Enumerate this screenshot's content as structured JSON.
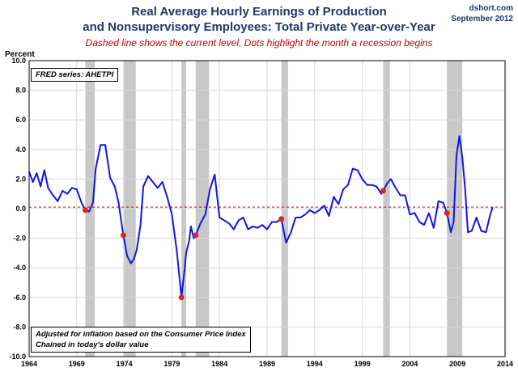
{
  "header": {
    "title_line1": "Real Average Hourly Earnings of Production",
    "title_line2": "and Nonsupervisory Employees: Total Private Year-over-Year",
    "subtitle": "Dashed line shows the current level, Dots highlight the month a recession begins",
    "source": "dshort.com",
    "date": "September 2012"
  },
  "colors": {
    "line": "#1414e6",
    "recession": "#c8c8c8",
    "dot": "#d42a1a",
    "dashed": "#cc0000"
  },
  "chart_data": {
    "type": "line",
    "ylabel": "Percent",
    "ylim": [
      -10,
      10
    ],
    "xlim": [
      1964,
      2014
    ],
    "y_ticks": [
      -10,
      -8,
      -6,
      -4,
      -2,
      0,
      2,
      4,
      6,
      8,
      10
    ],
    "y_tick_labels": [
      "-10.0",
      "-8.0",
      "-6.0",
      "-4.0",
      "-2.0",
      "0.0",
      "2.0",
      "4.0",
      "6.0",
      "8.0",
      "10.0"
    ],
    "x_ticks": [
      1964,
      1969,
      1974,
      1979,
      1984,
      1989,
      1994,
      1999,
      2004,
      2009,
      2014
    ],
    "grid": true,
    "current_level": 0.1,
    "annotations": {
      "fred_series": "FRED series: AHETPI",
      "note_line1": "Adjusted for inflation based on the Consumer Price Index",
      "note_line2": "Chained in today's dollar value"
    },
    "recessions": [
      [
        1969.9,
        1970.9
      ],
      [
        1973.9,
        1975.2
      ],
      [
        1980.0,
        1980.5
      ],
      [
        1981.5,
        1982.9
      ],
      [
        1990.5,
        1991.2
      ],
      [
        2001.2,
        2001.9
      ],
      [
        2007.9,
        2009.5
      ]
    ],
    "recession_start_values": [
      {
        "x": 1969.9,
        "y": -0.1
      },
      {
        "x": 1973.9,
        "y": -1.8
      },
      {
        "x": 1980.0,
        "y": -6.0
      },
      {
        "x": 1981.5,
        "y": -1.8
      },
      {
        "x": 1990.5,
        "y": -0.7
      },
      {
        "x": 2001.2,
        "y": 1.2
      },
      {
        "x": 2007.9,
        "y": -0.3
      }
    ],
    "series": [
      {
        "x": [
          1964.0,
          1964.4,
          1964.8,
          1965.2,
          1965.6,
          1966.0,
          1966.5,
          1967.0,
          1967.5,
          1968.0,
          1968.5,
          1969.0,
          1969.5,
          1969.9,
          1970.3,
          1970.7,
          1971.0,
          1971.5,
          1972.0,
          1972.5,
          1973.0,
          1973.4,
          1973.9,
          1974.3,
          1974.7,
          1975.0,
          1975.3,
          1975.7,
          1976.0,
          1976.5,
          1977.0,
          1977.5,
          1978.0,
          1978.5,
          1979.0,
          1979.5,
          1980.0,
          1980.3,
          1980.5,
          1980.8,
          1981.0,
          1981.3,
          1981.5,
          1982.0,
          1982.5,
          1983.0,
          1983.5,
          1984.0,
          1984.5,
          1985.0,
          1985.5,
          1986.0,
          1986.5,
          1987.0,
          1987.5,
          1988.0,
          1988.5,
          1989.0,
          1989.5,
          1990.0,
          1990.5,
          1991.0,
          1991.5,
          1992.0,
          1992.5,
          1993.0,
          1993.5,
          1994.0,
          1994.5,
          1995.0,
          1995.5,
          1996.0,
          1996.5,
          1997.0,
          1997.5,
          1998.0,
          1998.5,
          1999.0,
          1999.5,
          2000.0,
          2000.5,
          2001.0,
          2001.2,
          2001.6,
          2002.0,
          2002.5,
          2003.0,
          2003.5,
          2004.0,
          2004.5,
          2005.0,
          2005.5,
          2006.0,
          2006.5,
          2007.0,
          2007.5,
          2007.9,
          2008.3,
          2008.6,
          2008.9,
          2009.2,
          2009.5,
          2009.8,
          2010.1,
          2010.5,
          2011.0,
          2011.5,
          2012.0,
          2012.4,
          2012.7
        ],
        "y": [
          2.5,
          1.8,
          2.4,
          1.5,
          2.6,
          1.4,
          0.9,
          0.5,
          1.2,
          1.0,
          1.4,
          1.3,
          0.4,
          -0.1,
          -0.2,
          0.4,
          2.7,
          4.3,
          4.3,
          2.1,
          1.5,
          0.4,
          -1.8,
          -3.2,
          -3.7,
          -3.4,
          -2.8,
          -1.1,
          1.5,
          2.2,
          1.8,
          1.4,
          1.8,
          0.8,
          -0.4,
          -2.8,
          -6.0,
          -4.3,
          -3.0,
          -2.2,
          -1.2,
          -2.0,
          -1.8,
          -1.0,
          -0.4,
          1.3,
          2.3,
          -0.6,
          -0.8,
          -1.0,
          -1.4,
          -0.8,
          -0.6,
          -1.4,
          -1.2,
          -1.3,
          -1.1,
          -1.4,
          -0.9,
          -0.9,
          -0.7,
          -2.3,
          -1.6,
          -0.6,
          -0.6,
          -0.4,
          -0.1,
          -0.3,
          -0.1,
          0.2,
          -0.5,
          0.8,
          0.3,
          1.3,
          1.6,
          2.7,
          2.6,
          2.0,
          1.6,
          1.6,
          1.5,
          1.0,
          1.2,
          1.7,
          2.0,
          1.4,
          0.9,
          0.9,
          -0.4,
          -0.3,
          -0.9,
          -1.1,
          -0.3,
          -1.3,
          0.5,
          0.4,
          -0.3,
          -1.6,
          -0.9,
          3.6,
          4.9,
          3.5,
          1.4,
          -1.6,
          -1.5,
          -0.6,
          -1.5,
          -1.6,
          -0.5,
          0.1
        ]
      }
    ]
  }
}
